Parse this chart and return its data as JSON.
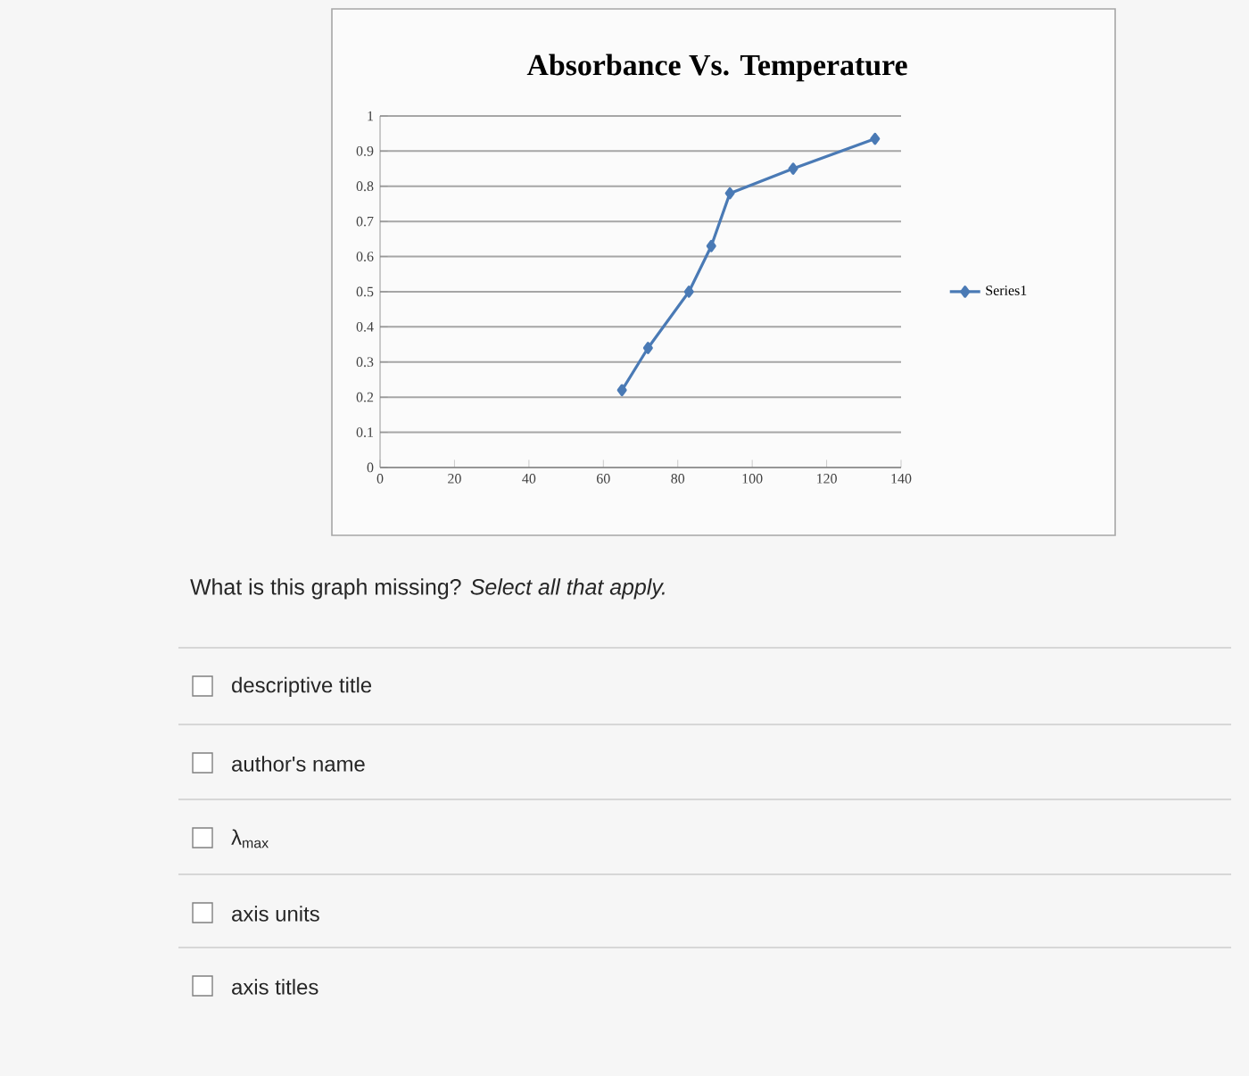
{
  "chart_data": {
    "type": "line",
    "title": "Absorbance Vs. Temperature",
    "x": [
      65,
      72,
      83,
      89,
      94,
      111,
      133
    ],
    "series": [
      {
        "name": "Series1",
        "color": "#4a7ab5",
        "values": [
          0.22,
          0.34,
          0.5,
          0.63,
          0.78,
          0.85,
          0.935
        ]
      }
    ],
    "xlim": [
      0,
      140
    ],
    "xticks": [
      0,
      20,
      40,
      60,
      80,
      100,
      120,
      140
    ],
    "ylim": [
      0,
      1
    ],
    "yticks": [
      0,
      0.1,
      0.2,
      0.3,
      0.4,
      0.5,
      0.6,
      0.7,
      0.8,
      0.9,
      1
    ],
    "grid": "y",
    "legend": "right",
    "marker": "diamond",
    "line_style": "solid",
    "annotations": [
      "What is this graph missing? *Select all that apply.*",
      "descriptive title",
      "author's name",
      "λ$_{max}$",
      "axis units",
      "axis titles"
    ]
  }
}
